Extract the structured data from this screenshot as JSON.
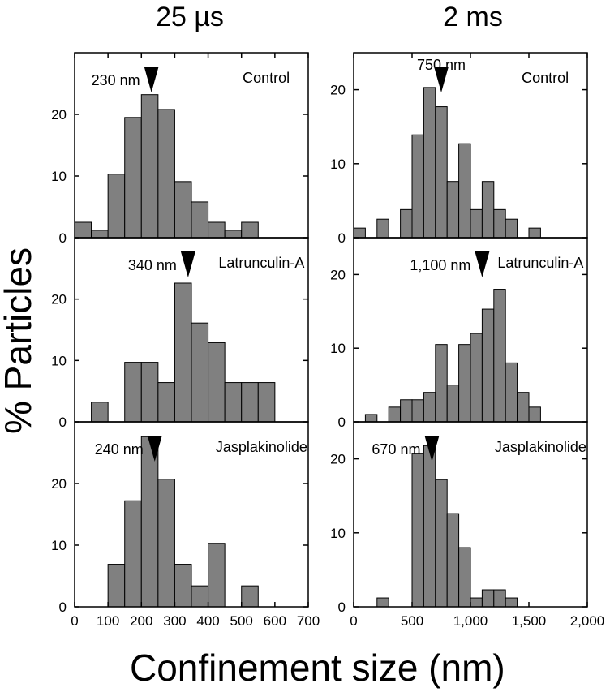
{
  "figure": {
    "column_titles": [
      "25 µs",
      "2 ms"
    ],
    "ylabel": "% Particles",
    "xlabel": "Confinement size (nm)",
    "bar_color": "#808080"
  },
  "chart_data": [
    {
      "type": "bar",
      "column": 0,
      "row": 0,
      "label": "Control",
      "marker_text": "230 nm",
      "marker_value": 230,
      "bin_width": 50,
      "bin_starts": [
        0,
        50,
        100,
        150,
        200,
        250,
        300,
        350,
        400,
        450,
        500,
        550
      ],
      "values": [
        2.5,
        1.2,
        10.3,
        19.5,
        23.2,
        20.8,
        9.1,
        5.8,
        2.5,
        1.2,
        2.5,
        0
      ],
      "xlim": [
        0,
        700
      ],
      "ylim": [
        0,
        30
      ],
      "yticks": [
        0,
        10,
        20
      ],
      "xticks": [
        0,
        100,
        200,
        300,
        400,
        500,
        600,
        700
      ],
      "xtick_labels": [
        "0",
        "100",
        "200",
        "300",
        "400",
        "500",
        "600",
        "700"
      ]
    },
    {
      "type": "bar",
      "column": 0,
      "row": 1,
      "label": "Latrunculin-A",
      "marker_text": "340 nm",
      "marker_value": 340,
      "bin_width": 50,
      "bin_starts": [
        0,
        50,
        100,
        150,
        200,
        250,
        300,
        350,
        400,
        450,
        500,
        550
      ],
      "values": [
        0,
        3.2,
        0,
        9.7,
        9.7,
        6.4,
        22.6,
        16.1,
        12.9,
        6.4,
        6.4,
        6.4
      ],
      "xlim": [
        0,
        700
      ],
      "ylim": [
        0,
        30
      ],
      "yticks": [
        0,
        10,
        20
      ],
      "xticks": [
        0,
        100,
        200,
        300,
        400,
        500,
        600,
        700
      ],
      "xtick_labels": [
        "0",
        "100",
        "200",
        "300",
        "400",
        "500",
        "600",
        "700"
      ]
    },
    {
      "type": "bar",
      "column": 0,
      "row": 2,
      "label": "Jasplakinolide",
      "marker_text": "240 nm",
      "marker_value": 240,
      "bin_width": 50,
      "bin_starts": [
        0,
        50,
        100,
        150,
        200,
        250,
        300,
        350,
        400,
        450,
        500,
        550
      ],
      "values": [
        0,
        0,
        6.9,
        17.2,
        27.6,
        20.7,
        6.9,
        3.4,
        10.3,
        0,
        3.4,
        0
      ],
      "xlim": [
        0,
        700
      ],
      "ylim": [
        0,
        30
      ],
      "yticks": [
        0,
        10,
        20
      ],
      "xticks": [
        0,
        100,
        200,
        300,
        400,
        500,
        600,
        700
      ],
      "xtick_labels": [
        "0",
        "100",
        "200",
        "300",
        "400",
        "500",
        "600",
        "700"
      ]
    },
    {
      "type": "bar",
      "column": 1,
      "row": 0,
      "label": "Control",
      "marker_text": "750 nm",
      "marker_value": 750,
      "bin_width": 100,
      "bin_starts": [
        0,
        100,
        200,
        300,
        400,
        500,
        600,
        700,
        800,
        900,
        1000,
        1100,
        1200,
        1300,
        1400,
        1500
      ],
      "values": [
        1.3,
        0,
        2.5,
        0,
        3.8,
        13.9,
        20.3,
        17.7,
        7.6,
        12.7,
        3.8,
        7.6,
        3.8,
        2.5,
        0,
        1.3
      ],
      "xlim": [
        0,
        2000
      ],
      "ylim": [
        0,
        25
      ],
      "yticks": [
        0,
        10,
        20
      ],
      "xticks": [
        0,
        500,
        1000,
        1500,
        2000
      ],
      "xtick_labels": [
        "0",
        "500",
        "1,000",
        "1,500",
        "2,000"
      ]
    },
    {
      "type": "bar",
      "column": 1,
      "row": 1,
      "label": "Latrunculin-A",
      "marker_text": "1,100 nm",
      "marker_value": 1100,
      "bin_width": 100,
      "bin_starts": [
        0,
        100,
        200,
        300,
        400,
        500,
        600,
        700,
        800,
        900,
        1000,
        1100,
        1200,
        1300,
        1400,
        1500
      ],
      "values": [
        0,
        1.0,
        0,
        2.0,
        3.0,
        3.0,
        4.0,
        10.5,
        5.0,
        10.5,
        12.0,
        15.3,
        18.0,
        8.0,
        4.0,
        2.0
      ],
      "xlim": [
        0,
        2000
      ],
      "ylim": [
        0,
        25
      ],
      "yticks": [
        0,
        10,
        20
      ],
      "xticks": [
        0,
        500,
        1000,
        1500,
        2000
      ],
      "xtick_labels": [
        "0",
        "500",
        "1,000",
        "1,500",
        "2,000"
      ]
    },
    {
      "type": "bar",
      "column": 1,
      "row": 2,
      "label": "Jasplakinolide",
      "marker_text": "670 nm",
      "marker_value": 670,
      "bin_width": 100,
      "bin_starts": [
        0,
        100,
        200,
        300,
        400,
        500,
        600,
        700,
        800,
        900,
        1000,
        1100,
        1200,
        1300,
        1400,
        1500
      ],
      "values": [
        0,
        0,
        1.2,
        0,
        0,
        20.7,
        21.8,
        17.2,
        12.6,
        8.0,
        1.2,
        2.3,
        2.3,
        1.2,
        0,
        0
      ],
      "xlim": [
        0,
        2000
      ],
      "ylim": [
        0,
        25
      ],
      "yticks": [
        0,
        10,
        20
      ],
      "xticks": [
        0,
        500,
        1000,
        1500,
        2000
      ],
      "xtick_labels": [
        "0",
        "500",
        "1,000",
        "1,500",
        "2,000"
      ]
    }
  ]
}
